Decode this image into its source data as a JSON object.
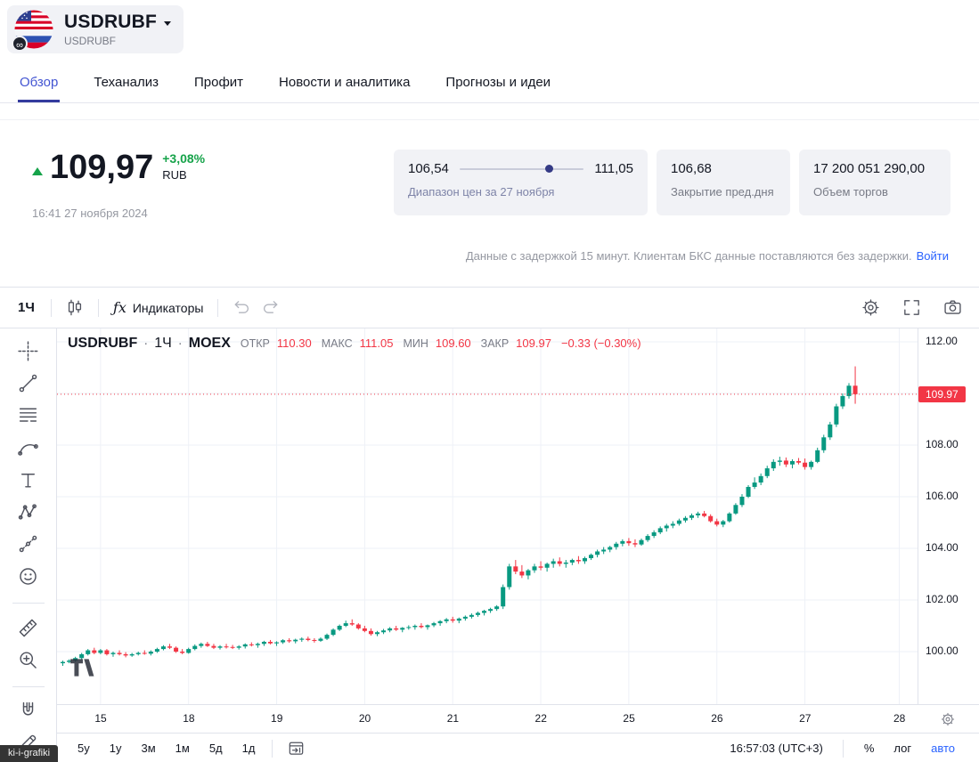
{
  "header": {
    "symbol": "USDRUBF",
    "symbol_sub": "USDRUBF"
  },
  "tabs": [
    {
      "label": "Обзор",
      "active": true
    },
    {
      "label": "Теханализ",
      "active": false
    },
    {
      "label": "Профит",
      "active": false
    },
    {
      "label": "Новости и аналитика",
      "active": false
    },
    {
      "label": "Прогнозы и идеи",
      "active": false
    }
  ],
  "quote": {
    "price": "109,97",
    "change_pct": "+3,08%",
    "currency": "RUB",
    "timestamp": "16:41 27 ноября 2024"
  },
  "cards": {
    "range": {
      "low": "106,54",
      "high": "111,05",
      "label": "Диапазон цен за 27 ноября",
      "dot_pos_pct": 72
    },
    "prev_close": {
      "value": "106,68",
      "label": "Закрытие пред.дня"
    },
    "volume": {
      "value": "17 200 051 290,00",
      "label": "Объем торгов"
    }
  },
  "notice": {
    "text": "Данные с задержкой 15 минут. Клиентам БКС данные поставляются без задержки.",
    "link_label": "Войти"
  },
  "chart_toolbar": {
    "interval": "1Ч",
    "fx_label": "ƒx",
    "indicators_label": "Индикаторы",
    "right_icons": [
      "settings-gear-icon",
      "fullscreen-icon",
      "camera-icon"
    ]
  },
  "drawing_toolbar": {
    "icons": [
      "crosshair-icon",
      "trendline-icon",
      "fib-lines-icon",
      "brush-icon",
      "text-tool-icon",
      "xabcd-pattern-icon",
      "forecast-icon",
      "emoji-icon",
      "separator",
      "ruler-icon",
      "zoom-in-icon",
      "separator",
      "magnet-icon",
      "edit-icon"
    ]
  },
  "legend": {
    "symbol": "USDRUBF",
    "dot": "·",
    "interval": "1Ч",
    "exchange": "MOEX",
    "open_label": "ОТКР",
    "open": "110.30",
    "high_label": "МАКС",
    "high": "111.05",
    "low_label": "МИН",
    "low": "109.60",
    "close_label": "ЗАКР",
    "close": "109.97",
    "change": "−0.33 (−0.30%)"
  },
  "chart_data": {
    "type": "candlestick",
    "title": "USDRUBF · 1Ч · MOEX",
    "symbol": "USDRUBF",
    "interval": "1Ч",
    "exchange": "MOEX",
    "last_price": 109.97,
    "last_price_label": "109.97",
    "ylim": [
      97.9,
      112.4
    ],
    "up_color": "#089981",
    "down_color": "#f23645",
    "price_axis": [
      {
        "p": 112,
        "label": "112.00"
      },
      {
        "p": 110,
        "label": ""
      },
      {
        "p": 108,
        "label": "108.00"
      },
      {
        "p": 106,
        "label": "106.00"
      },
      {
        "p": 104,
        "label": "104.00"
      },
      {
        "p": 102,
        "label": "102.00"
      },
      {
        "p": 100,
        "label": "100.00"
      }
    ],
    "time_labels": [
      {
        "label": "15",
        "i": 6
      },
      {
        "label": "18",
        "i": 20
      },
      {
        "label": "19",
        "i": 34
      },
      {
        "label": "20",
        "i": 48
      },
      {
        "label": "21",
        "i": 62
      },
      {
        "label": "22",
        "i": 76
      },
      {
        "label": "25",
        "i": 90
      },
      {
        "label": "26",
        "i": 104
      },
      {
        "label": "27",
        "i": 118
      },
      {
        "label": "28",
        "i": 133
      }
    ],
    "candles": [
      [
        99.55,
        99.65,
        99.45,
        99.6
      ],
      [
        99.6,
        99.7,
        99.55,
        99.65
      ],
      [
        99.65,
        99.8,
        99.6,
        99.75
      ],
      [
        99.75,
        99.95,
        99.7,
        99.9
      ],
      [
        99.9,
        100.1,
        99.85,
        100.05
      ],
      [
        100.05,
        100.15,
        99.9,
        99.95
      ],
      [
        99.95,
        100.1,
        99.9,
        100.05
      ],
      [
        100.05,
        100.1,
        99.85,
        99.9
      ],
      [
        99.9,
        100.0,
        99.8,
        99.95
      ],
      [
        99.95,
        100.05,
        99.85,
        99.9
      ],
      [
        99.9,
        99.98,
        99.78,
        99.85
      ],
      [
        99.85,
        99.95,
        99.8,
        99.9
      ],
      [
        99.9,
        100.0,
        99.85,
        99.95
      ],
      [
        99.95,
        100.05,
        99.88,
        99.92
      ],
      [
        99.92,
        100.05,
        99.85,
        100.0
      ],
      [
        100.0,
        100.15,
        99.95,
        100.1
      ],
      [
        100.1,
        100.25,
        100.05,
        100.2
      ],
      [
        100.2,
        100.3,
        100.1,
        100.15
      ],
      [
        100.15,
        100.2,
        99.95,
        100.0
      ],
      [
        100.0,
        100.1,
        99.9,
        99.95
      ],
      [
        99.95,
        100.15,
        99.92,
        100.1
      ],
      [
        100.1,
        100.28,
        100.05,
        100.22
      ],
      [
        100.22,
        100.35,
        100.15,
        100.3
      ],
      [
        100.3,
        100.38,
        100.18,
        100.22
      ],
      [
        100.22,
        100.3,
        100.1,
        100.15
      ],
      [
        100.15,
        100.25,
        100.08,
        100.2
      ],
      [
        100.2,
        100.3,
        100.12,
        100.18
      ],
      [
        100.18,
        100.26,
        100.1,
        100.15
      ],
      [
        100.15,
        100.25,
        100.08,
        100.2
      ],
      [
        100.2,
        100.32,
        100.12,
        100.28
      ],
      [
        100.28,
        100.36,
        100.2,
        100.25
      ],
      [
        100.25,
        100.35,
        100.15,
        100.3
      ],
      [
        100.3,
        100.42,
        100.22,
        100.38
      ],
      [
        100.38,
        100.45,
        100.28,
        100.32
      ],
      [
        100.32,
        100.4,
        100.22,
        100.36
      ],
      [
        100.36,
        100.48,
        100.3,
        100.44
      ],
      [
        100.44,
        100.52,
        100.34,
        100.4
      ],
      [
        100.4,
        100.5,
        100.32,
        100.46
      ],
      [
        100.46,
        100.55,
        100.38,
        100.5
      ],
      [
        100.5,
        100.58,
        100.4,
        100.45
      ],
      [
        100.45,
        100.52,
        100.35,
        100.42
      ],
      [
        100.42,
        100.55,
        100.38,
        100.5
      ],
      [
        100.5,
        100.7,
        100.45,
        100.65
      ],
      [
        100.65,
        100.9,
        100.6,
        100.85
      ],
      [
        100.85,
        101.05,
        100.8,
        101.0
      ],
      [
        101.0,
        101.2,
        100.95,
        101.1
      ],
      [
        101.1,
        101.25,
        101.0,
        101.05
      ],
      [
        101.05,
        101.1,
        100.85,
        100.9
      ],
      [
        100.9,
        101.0,
        100.75,
        100.8
      ],
      [
        100.8,
        100.9,
        100.62,
        100.68
      ],
      [
        100.68,
        100.8,
        100.6,
        100.75
      ],
      [
        100.75,
        100.88,
        100.68,
        100.82
      ],
      [
        100.82,
        100.95,
        100.75,
        100.9
      ],
      [
        100.9,
        101.0,
        100.8,
        100.85
      ],
      [
        100.85,
        100.95,
        100.75,
        100.92
      ],
      [
        100.92,
        101.02,
        100.85,
        100.95
      ],
      [
        100.95,
        101.05,
        100.85,
        101.0
      ],
      [
        101.0,
        101.1,
        100.9,
        100.95
      ],
      [
        100.95,
        101.05,
        100.85,
        101.02
      ],
      [
        101.02,
        101.15,
        100.95,
        101.1
      ],
      [
        101.1,
        101.22,
        101.0,
        101.18
      ],
      [
        101.18,
        101.3,
        101.1,
        101.25
      ],
      [
        101.25,
        101.35,
        101.12,
        101.2
      ],
      [
        101.2,
        101.32,
        101.1,
        101.28
      ],
      [
        101.28,
        101.4,
        101.2,
        101.35
      ],
      [
        101.35,
        101.48,
        101.28,
        101.42
      ],
      [
        101.42,
        101.55,
        101.35,
        101.5
      ],
      [
        101.5,
        101.62,
        101.4,
        101.58
      ],
      [
        101.58,
        101.7,
        101.5,
        101.65
      ],
      [
        101.65,
        101.8,
        101.58,
        101.75
      ],
      [
        101.75,
        102.6,
        101.65,
        102.5
      ],
      [
        102.5,
        103.4,
        102.4,
        103.3
      ],
      [
        103.3,
        103.55,
        103.0,
        103.1
      ],
      [
        103.1,
        103.35,
        102.85,
        102.95
      ],
      [
        102.95,
        103.2,
        102.8,
        103.15
      ],
      [
        103.15,
        103.4,
        103.05,
        103.3
      ],
      [
        103.3,
        103.5,
        103.15,
        103.25
      ],
      [
        103.25,
        103.45,
        103.1,
        103.4
      ],
      [
        103.4,
        103.6,
        103.25,
        103.5
      ],
      [
        103.5,
        103.65,
        103.3,
        103.4
      ],
      [
        103.4,
        103.55,
        103.25,
        103.45
      ],
      [
        103.45,
        103.6,
        103.35,
        103.55
      ],
      [
        103.55,
        103.7,
        103.4,
        103.5
      ],
      [
        103.5,
        103.68,
        103.4,
        103.62
      ],
      [
        103.62,
        103.8,
        103.55,
        103.75
      ],
      [
        103.75,
        103.95,
        103.65,
        103.88
      ],
      [
        103.88,
        104.05,
        103.78,
        103.95
      ],
      [
        103.95,
        104.1,
        103.85,
        104.05
      ],
      [
        104.05,
        104.25,
        103.95,
        104.18
      ],
      [
        104.18,
        104.35,
        104.08,
        104.28
      ],
      [
        104.28,
        104.4,
        104.1,
        104.2
      ],
      [
        104.2,
        104.35,
        104.05,
        104.15
      ],
      [
        104.15,
        104.38,
        104.1,
        104.32
      ],
      [
        104.32,
        104.55,
        104.25,
        104.48
      ],
      [
        104.48,
        104.7,
        104.4,
        104.62
      ],
      [
        104.62,
        104.85,
        104.55,
        104.78
      ],
      [
        104.78,
        104.95,
        104.65,
        104.88
      ],
      [
        104.88,
        105.05,
        104.78,
        104.95
      ],
      [
        104.95,
        105.15,
        104.88,
        105.08
      ],
      [
        105.08,
        105.25,
        105.0,
        105.18
      ],
      [
        105.18,
        105.35,
        105.1,
        105.28
      ],
      [
        105.28,
        105.42,
        105.18,
        105.35
      ],
      [
        105.35,
        105.45,
        105.2,
        105.25
      ],
      [
        105.25,
        105.32,
        105.0,
        105.05
      ],
      [
        105.05,
        105.15,
        104.85,
        104.92
      ],
      [
        104.92,
        105.1,
        104.82,
        105.05
      ],
      [
        105.05,
        105.4,
        105.0,
        105.35
      ],
      [
        105.35,
        105.75,
        105.3,
        105.68
      ],
      [
        105.68,
        106.1,
        105.6,
        106.0
      ],
      [
        106.0,
        106.45,
        105.95,
        106.38
      ],
      [
        106.38,
        106.75,
        106.3,
        106.55
      ],
      [
        106.55,
        106.9,
        106.45,
        106.8
      ],
      [
        106.8,
        107.2,
        106.72,
        107.1
      ],
      [
        107.1,
        107.45,
        107.0,
        107.35
      ],
      [
        107.35,
        107.55,
        107.2,
        107.4
      ],
      [
        107.4,
        107.52,
        107.15,
        107.25
      ],
      [
        107.25,
        107.45,
        107.1,
        107.38
      ],
      [
        107.38,
        107.5,
        107.25,
        107.32
      ],
      [
        107.32,
        107.48,
        107.05,
        107.15
      ],
      [
        107.15,
        107.4,
        107.05,
        107.35
      ],
      [
        107.35,
        107.9,
        107.3,
        107.8
      ],
      [
        107.8,
        108.4,
        107.7,
        108.3
      ],
      [
        108.3,
        108.9,
        108.2,
        108.8
      ],
      [
        108.8,
        109.6,
        108.7,
        109.5
      ],
      [
        109.5,
        110.0,
        109.4,
        109.9
      ],
      [
        109.9,
        110.4,
        109.8,
        110.3
      ],
      [
        110.3,
        111.05,
        109.6,
        109.97
      ]
    ]
  },
  "bottom_bar": {
    "ranges": [
      "5у",
      "1у",
      "3м",
      "1м",
      "5д",
      "1д"
    ],
    "clock": "16:57:03 (UTC+3)",
    "percent_label": "%",
    "log_label": "лог",
    "auto_label": "авто"
  },
  "status_tooltip": "ki-i-grafiki",
  "colors": {
    "accent_tab": "#4355d2",
    "accent_tab_underline": "#343b9e",
    "link": "#2962ff",
    "quote_green": "#16a34a",
    "candle_up": "#089981",
    "candle_down": "#f23645",
    "text": "#131722",
    "muted": "#787b86",
    "muted2": "#9598a1",
    "border": "#e0e3eb",
    "card_bg": "#f1f2f6",
    "grid": "#eef1f7",
    "range_dot": "#343a85"
  }
}
